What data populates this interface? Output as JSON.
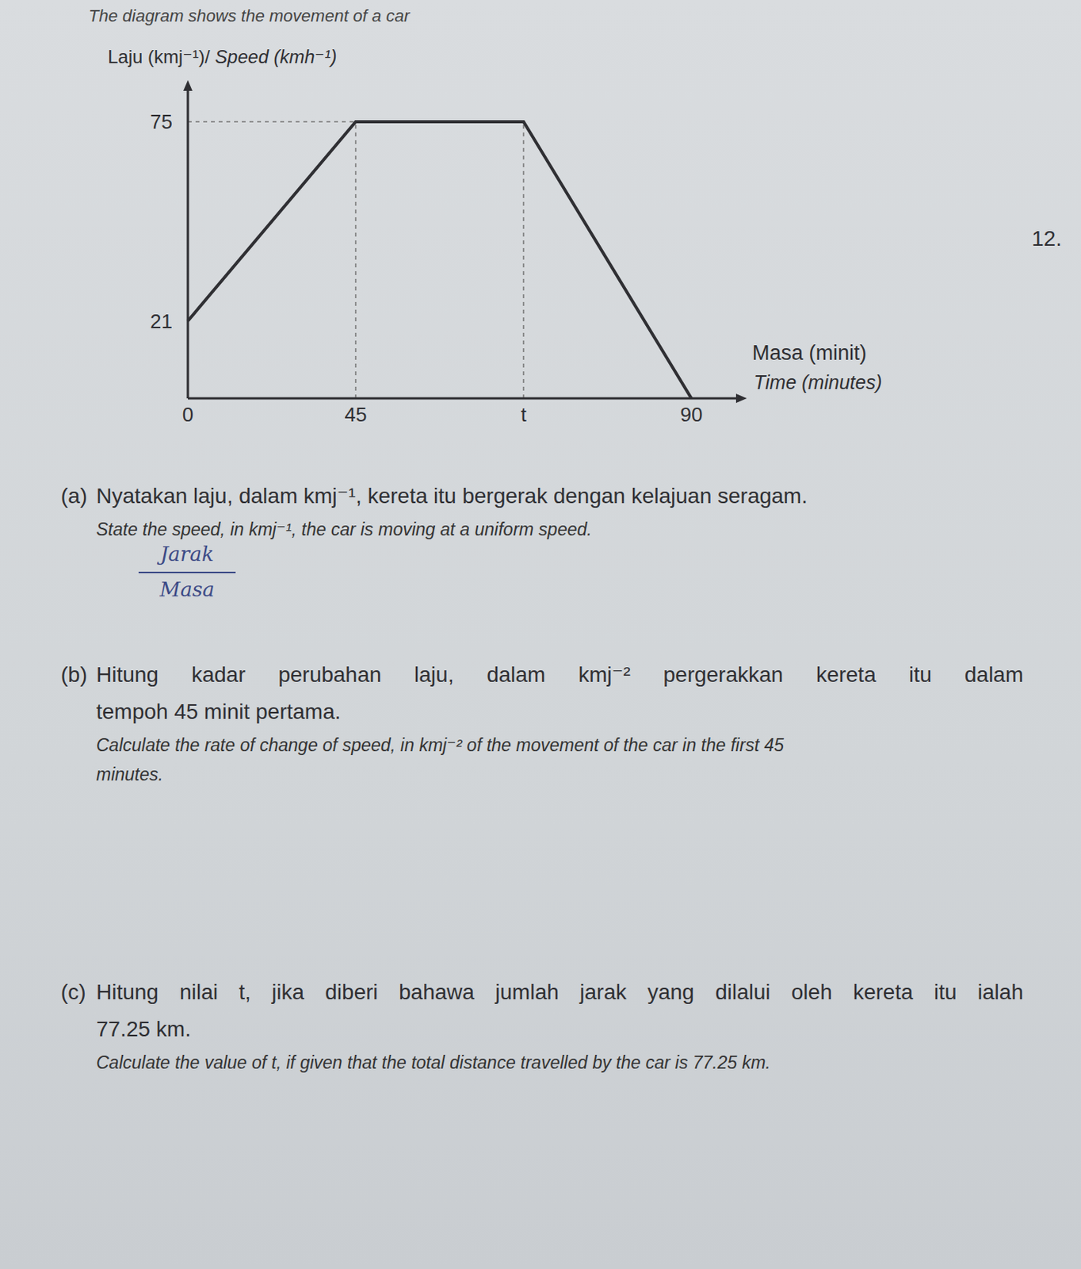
{
  "header": "The diagram shows the movement of a car",
  "question_number": "12.",
  "chart_data": {
    "type": "line",
    "y_label_ms": "Laju (kmj⁻¹)/",
    "y_label_en": "Speed (kmh⁻¹)",
    "x_label_ms": "Masa (minit)",
    "x_label_en": "Time (minutes)",
    "categories": [
      "0",
      "45",
      "t",
      "90"
    ],
    "values": [
      21,
      75,
      75,
      0
    ],
    "color": "#2f2f33",
    "line_style": "solid",
    "ylim": [
      0,
      84
    ],
    "yticks": [
      21,
      75
    ],
    "grid": false
  },
  "questions": [
    {
      "label": "(a)",
      "text_ms": [
        "Nyatakan laju, dalam kmj⁻¹, kereta itu bergerak dengan kelajuan seragam."
      ],
      "text_en": [
        "State the speed, in kmj⁻¹, the car is moving at a uniform speed."
      ]
    },
    {
      "label": "(b)",
      "text_ms": [
        "Hitung kadar perubahan laju, dalam kmj⁻² pergerakkan kereta itu dalam",
        "tempoh 45 minit pertama."
      ],
      "text_en": [
        "Calculate the rate of change of speed, in kmj⁻² of the movement of the car in the first 45",
        "minutes."
      ]
    },
    {
      "label": "(c)",
      "text_ms": [
        "Hitung nilai t, jika diberi bahawa jumlah jarak yang dilalui oleh kereta itu ialah",
        "77.25 km."
      ],
      "text_en": [
        "Calculate the value of t, if given that the total distance travelled by the car is 77.25 km."
      ]
    }
  ],
  "handwriting": {
    "numerator": "Jarak",
    "denominator": "Masa"
  }
}
